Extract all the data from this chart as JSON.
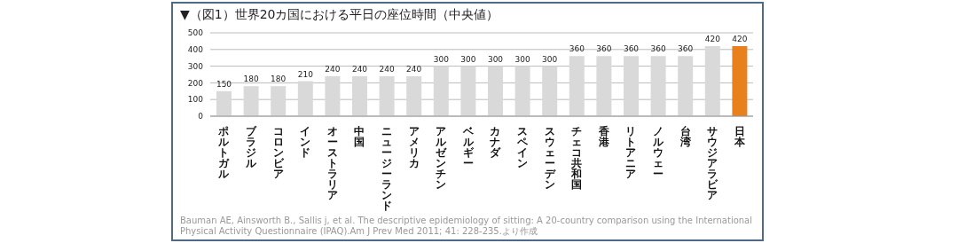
{
  "chart_data": {
    "type": "bar",
    "title": "▼（図1）世界20カ国における平日の座位時間（中央値）",
    "categories": [
      "ポルトガル",
      "ブラジル",
      "コロンビア",
      "インド",
      "オーストラリア",
      "中国",
      "ニュージーランド",
      "アメリカ",
      "アルゼンチン",
      "ベルギー",
      "カナダ",
      "スペイン",
      "スウェーデン",
      "チェコ共和国",
      "香港",
      "リトアニア",
      "ノルウェー",
      "台湾",
      "サウジアラビア",
      "日本"
    ],
    "values": [
      150,
      180,
      180,
      210,
      240,
      240,
      240,
      240,
      300,
      300,
      300,
      300,
      300,
      360,
      360,
      360,
      360,
      360,
      420,
      420
    ],
    "colors": [
      "#d9d9d9",
      "#d9d9d9",
      "#d9d9d9",
      "#d9d9d9",
      "#d9d9d9",
      "#d9d9d9",
      "#d9d9d9",
      "#d9d9d9",
      "#d9d9d9",
      "#d9d9d9",
      "#d9d9d9",
      "#d9d9d9",
      "#d9d9d9",
      "#d9d9d9",
      "#d9d9d9",
      "#d9d9d9",
      "#d9d9d9",
      "#d9d9d9",
      "#d9d9d9",
      "#e8801e"
    ],
    "ylim": [
      0,
      500
    ],
    "yticks": [
      0,
      100,
      200,
      300,
      400,
      500
    ],
    "grid": "y",
    "data_labels": true,
    "annotations": [
      "Bauman AE, Ainsworth B., Sallis j, et al. The descriptive epidemiology of sitting: A 20-country comparison using the International Physical Activity Questionnaire (IPAQ).Am J Prev Med 2011; 41: 228-235.より作成"
    ]
  }
}
